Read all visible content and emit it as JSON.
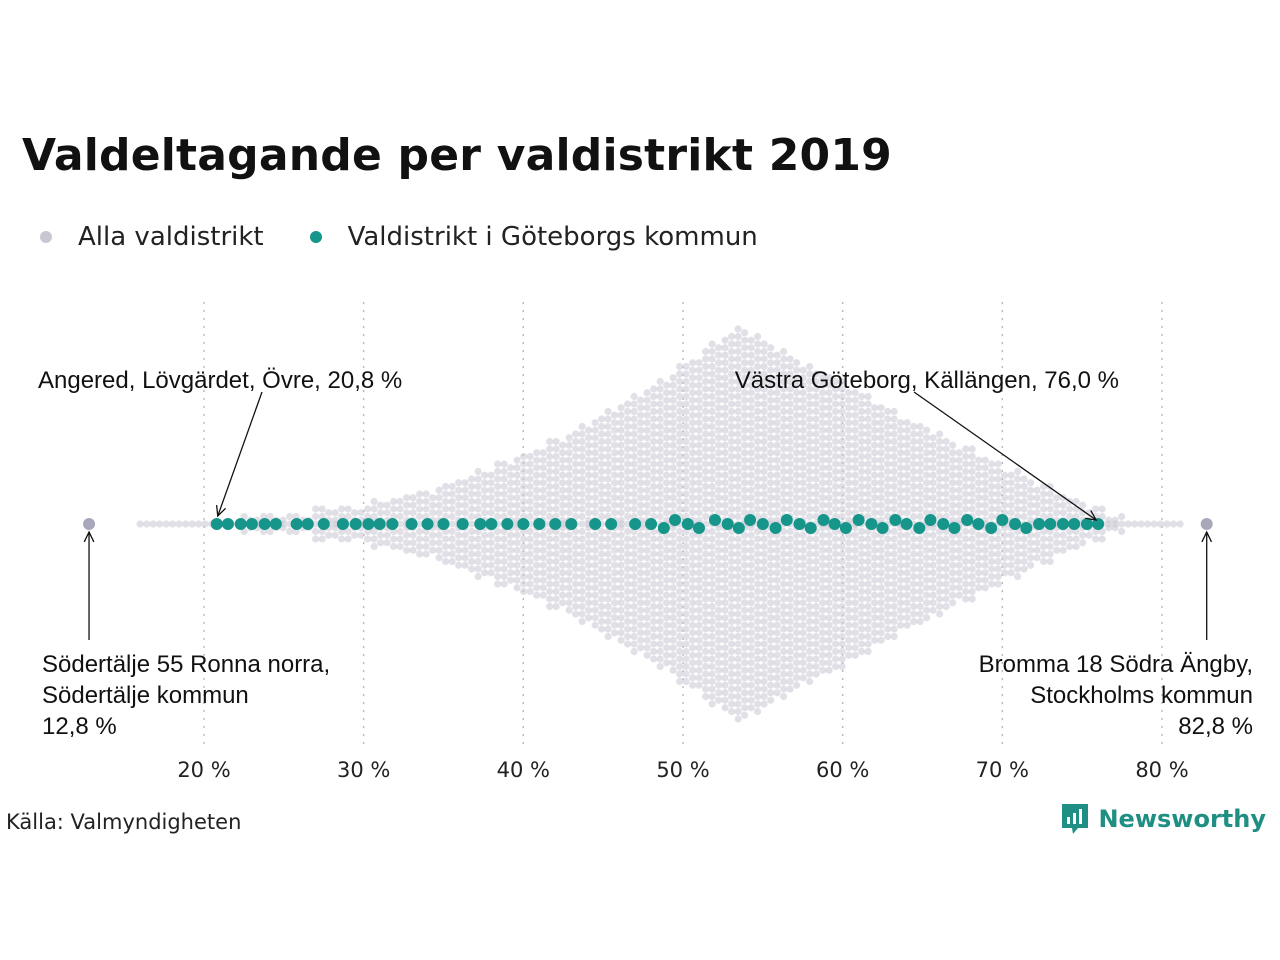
{
  "title": "Valdeltagande per valdistrikt 2019",
  "legend": [
    {
      "label": "Alla valdistrikt",
      "color": "#c9c7d4"
    },
    {
      "label": "Valdistrikt i Göteborgs kommun",
      "color": "#16958a"
    }
  ],
  "source": "Källa: Valmyndigheten",
  "brand": {
    "name": "Newsworthy",
    "icon": "newsworthy-logo-icon",
    "color": "#1f8f83"
  },
  "chart_data": {
    "type": "scatter",
    "subtype": "beeswarm",
    "xlim": [
      12,
      84
    ],
    "ticks": [
      20,
      30,
      40,
      50,
      60,
      70,
      80
    ],
    "tick_labels": [
      "20 %",
      "30 %",
      "40 %",
      "50 %",
      "60 %",
      "70 %",
      "80 %"
    ],
    "grid": "vertical dotted",
    "series": [
      {
        "name": "Alla valdistrikt",
        "color": "#c9c7d4",
        "distribution_profile": [
          [
            12.8,
            0
          ],
          [
            16,
            0
          ],
          [
            20,
            0.02
          ],
          [
            25,
            0.06
          ],
          [
            30,
            0.1
          ],
          [
            35,
            0.2
          ],
          [
            40,
            0.35
          ],
          [
            45,
            0.55
          ],
          [
            50,
            0.8
          ],
          [
            53.6,
            1
          ],
          [
            56,
            0.88
          ],
          [
            60,
            0.72
          ],
          [
            65,
            0.5
          ],
          [
            70,
            0.3
          ],
          [
            75,
            0.12
          ],
          [
            78,
            0.03
          ],
          [
            82.8,
            0
          ]
        ]
      },
      {
        "name": "Valdistrikt i Göteborgs kommun",
        "color": "#16958a",
        "values": [
          20.8,
          21.5,
          22.3,
          23.0,
          23.8,
          24.5,
          25.8,
          26.5,
          27.5,
          28.7,
          29.5,
          30.3,
          31.0,
          31.8,
          33.0,
          34.0,
          35.0,
          36.2,
          37.3,
          38.0,
          39.0,
          40.0,
          41.0,
          42.0,
          43.0,
          44.5,
          45.5,
          47.0,
          48.0,
          48.8,
          49.5,
          50.3,
          51.0,
          52.0,
          52.8,
          53.5,
          54.2,
          55.0,
          55.8,
          56.5,
          57.3,
          58.0,
          58.8,
          59.5,
          60.2,
          61.0,
          61.8,
          62.5,
          63.3,
          64.0,
          64.8,
          65.5,
          66.3,
          67.0,
          67.8,
          68.5,
          69.3,
          70.0,
          70.8,
          71.5,
          72.3,
          73.0,
          73.8,
          74.5,
          75.3,
          76.0
        ]
      }
    ],
    "annotations": [
      {
        "id": "angered",
        "text": "Angered, Lövgärdet, Övre, 20,8 %",
        "x": 20.8
      },
      {
        "id": "vastra",
        "text": "Västra Göteborg, Källängen, 76,0 %",
        "x": 76.0
      },
      {
        "id": "sodertalje",
        "lines": [
          "Södertälje 55 Ronna norra,",
          "Södertälje kommun",
          "12,8 %"
        ],
        "x": 12.8
      },
      {
        "id": "bromma",
        "lines": [
          "Bromma 18 Södra Ängby,",
          "Stockholms kommun",
          "82,8 %"
        ],
        "x": 82.8
      }
    ]
  }
}
